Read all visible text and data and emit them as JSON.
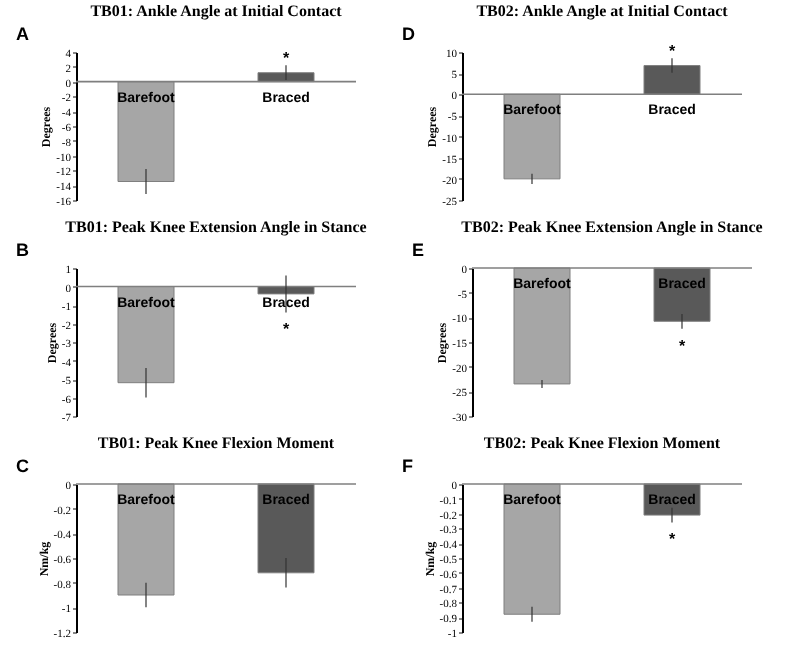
{
  "chart_data": [
    {
      "type": "bar",
      "title": "TB01: Ankle Angle at Initial Contact",
      "ylabel": "Degrees",
      "categories": [
        "Barefoot",
        "Braced"
      ],
      "values": [
        -13.5,
        1.2
      ],
      "colors": [
        "#a6a6a6",
        "#595959"
      ],
      "errors": [
        1.7,
        1.0
      ],
      "ylim": [
        -16,
        4
      ],
      "yticks": [
        -16,
        -14,
        -12,
        -10,
        -8,
        -6,
        -4,
        -2,
        0,
        2,
        4
      ],
      "tick_labels": "y",
      "grid": false,
      "ref_lines": [
        {
          "axis": "y",
          "value": 0,
          "color": "#7f7f7f"
        }
      ],
      "annotations": [
        "A",
        "*"
      ]
    },
    {
      "type": "bar",
      "title": "TB02: Ankle Angle at Initial Contact",
      "ylabel": "Degrees",
      "categories": [
        "Barefoot",
        "Braced"
      ],
      "values": [
        -20,
        6.8
      ],
      "colors": [
        "#a6a6a6",
        "#595959"
      ],
      "errors": [
        1.2,
        1.7
      ],
      "ylim": [
        -25,
        10
      ],
      "yticks": [
        -25,
        -20,
        -15,
        -10,
        -5,
        0,
        5,
        10
      ],
      "tick_labels": "y",
      "grid": false,
      "ref_lines": [
        {
          "axis": "y",
          "value": 0,
          "color": "#7f7f7f"
        }
      ],
      "annotations": [
        "D",
        "*"
      ]
    },
    {
      "type": "bar",
      "title": "TB01: Peak Knee Extension Angle in Stance",
      "ylabel": "Degrees",
      "categories": [
        "Barefoot",
        "Braced"
      ],
      "values": [
        -5.2,
        -0.4
      ],
      "colors": [
        "#a6a6a6",
        "#595959"
      ],
      "errors": [
        0.8,
        1.0
      ],
      "ylim": [
        -7,
        1
      ],
      "yticks": [
        -7,
        -6,
        -5,
        -4,
        -3,
        -2,
        -1,
        0,
        1
      ],
      "tick_labels": "y",
      "grid": false,
      "ref_lines": [
        {
          "axis": "y",
          "value": 0,
          "color": "#7f7f7f"
        }
      ],
      "annotations": [
        "B",
        "*"
      ]
    },
    {
      "type": "bar",
      "title": "TB02: Peak Knee Extension Angle in Stance",
      "ylabel": "Degrees",
      "categories": [
        "Barefoot",
        "Braced"
      ],
      "values": [
        -23.5,
        -10.8
      ],
      "colors": [
        "#a6a6a6",
        "#595959"
      ],
      "errors": [
        0.8,
        1.5
      ],
      "ylim": [
        -30,
        0
      ],
      "yticks": [
        -30,
        -25,
        -20,
        -15,
        -10,
        -5,
        0
      ],
      "tick_labels": "y",
      "grid": false,
      "ref_lines": [
        {
          "axis": "y",
          "value": 0,
          "color": "#7f7f7f"
        }
      ],
      "annotations": [
        "E",
        "*"
      ]
    },
    {
      "type": "bar",
      "title": "TB01: Peak Knee Flexion Moment",
      "ylabel": "Nm/kg",
      "categories": [
        "Barefoot",
        "Braced"
      ],
      "values": [
        -0.9,
        -0.72
      ],
      "colors": [
        "#a6a6a6",
        "#595959"
      ],
      "errors": [
        0.1,
        0.12
      ],
      "ylim": [
        -1.2,
        0
      ],
      "yticks": [
        -1.2,
        -1,
        -0.8,
        -0.6,
        -0.4,
        -0.2,
        0
      ],
      "tick_labels": "y",
      "grid": false,
      "ref_lines": [
        {
          "axis": "y",
          "value": 0,
          "color": "#7f7f7f"
        }
      ],
      "annotations": [
        "C"
      ]
    },
    {
      "type": "bar",
      "title": "TB02: Peak Knee Flexion Moment",
      "ylabel": "Nm/kg",
      "categories": [
        "Barefoot",
        "Braced"
      ],
      "values": [
        -0.88,
        -0.21
      ],
      "colors": [
        "#a6a6a6",
        "#595959"
      ],
      "errors": [
        0.05,
        0.05
      ],
      "ylim": [
        -1,
        0
      ],
      "yticks": [
        -1,
        -0.9,
        -0.8,
        -0.7,
        -0.6,
        -0.5,
        -0.4,
        -0.3,
        -0.2,
        -0.1,
        0
      ],
      "tick_labels": "y",
      "grid": false,
      "ref_lines": [
        {
          "axis": "y",
          "value": 0,
          "color": "#7f7f7f"
        }
      ],
      "annotations": [
        "F",
        "*"
      ]
    }
  ]
}
